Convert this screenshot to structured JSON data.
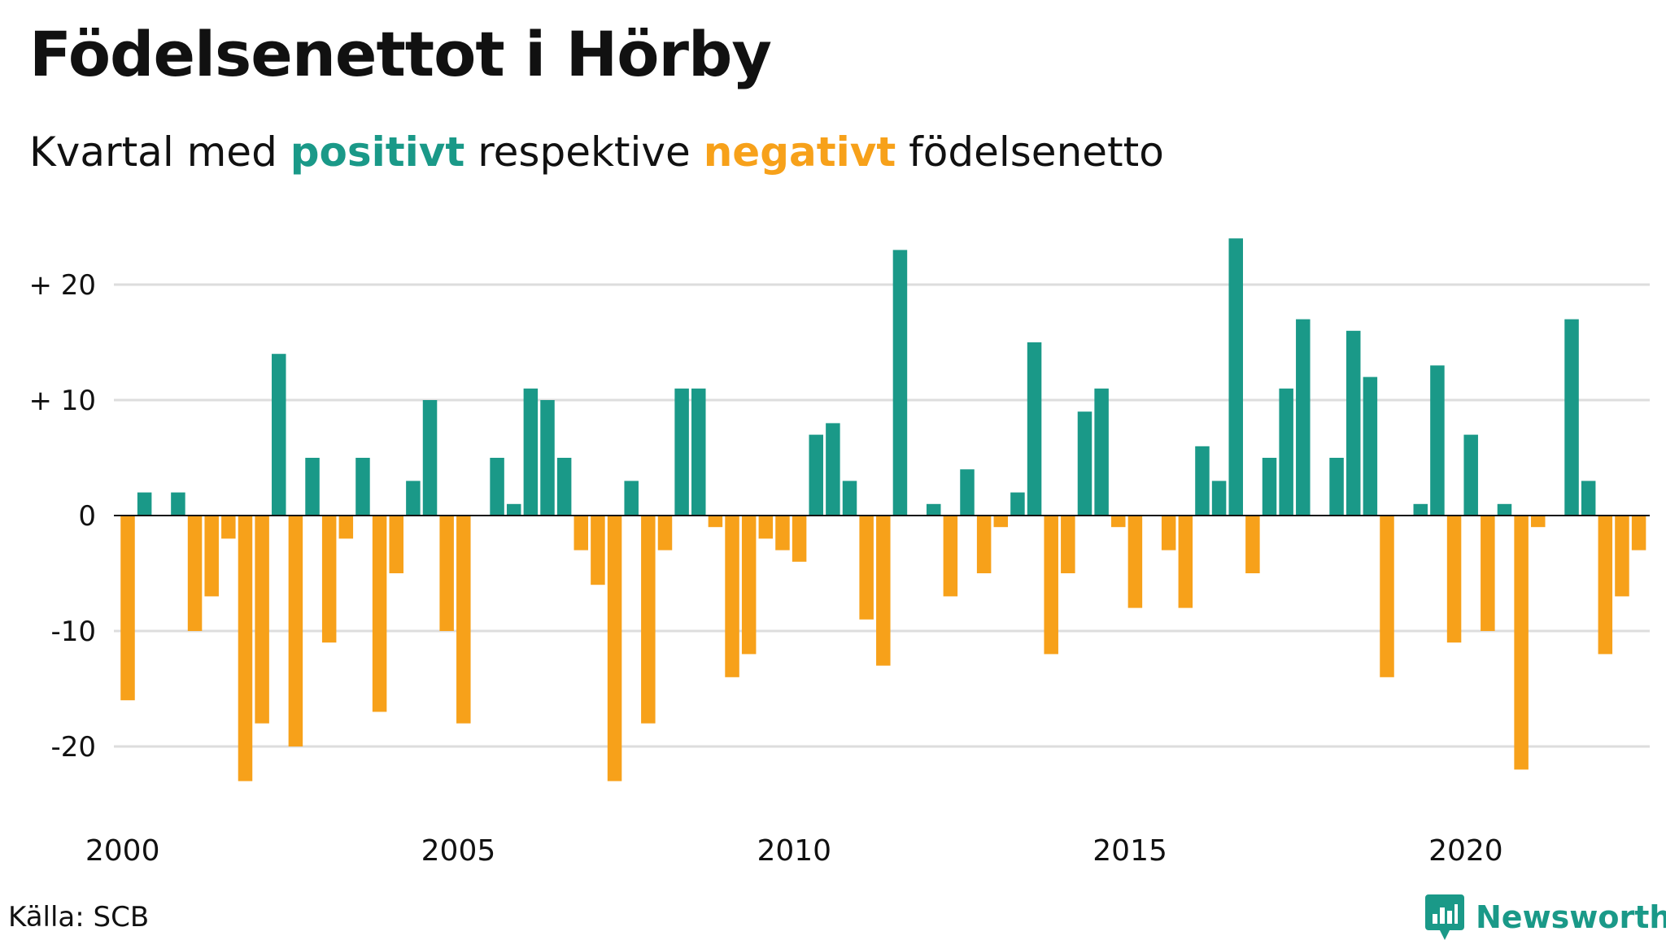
{
  "header": {
    "title": "Födelsenettot i Hörby",
    "subtitle_prefix": "Kvartal med",
    "subtitle_pos": "positivt",
    "subtitle_mid": "respektive",
    "subtitle_neg": "negativt",
    "subtitle_suffix": "födelsenetto"
  },
  "footer": {
    "source": "Källa: SCB",
    "brand": "Newsworthy",
    "brand_icon": "newsworthy-logo-icon"
  },
  "colors": {
    "positive": "#1a9988",
    "negative": "#f7a11a",
    "grid": "#dddddd",
    "zero": "#111111"
  },
  "chart_data": {
    "type": "bar",
    "start_year": 2000,
    "start_quarter": 1,
    "values": [
      -16,
      2,
      0,
      2,
      -10,
      -7,
      -2,
      -23,
      -18,
      14,
      -20,
      5,
      -11,
      -2,
      5,
      -17,
      -5,
      3,
      10,
      -10,
      -18,
      0,
      5,
      1,
      11,
      10,
      5,
      -3,
      -6,
      -23,
      3,
      -18,
      -3,
      11,
      11,
      -1,
      -14,
      -12,
      -2,
      -3,
      -4,
      7,
      8,
      3,
      -9,
      -13,
      23,
      0,
      1,
      -7,
      4,
      -5,
      -1,
      2,
      15,
      -12,
      -5,
      9,
      11,
      -1,
      -8,
      0,
      -3,
      -8,
      6,
      3,
      24,
      -5,
      5,
      11,
      17,
      0,
      5,
      16,
      12,
      -14,
      0,
      1,
      13,
      -11,
      7,
      -10,
      1,
      -22,
      -1,
      0,
      17,
      3,
      -12,
      -7,
      -3
    ],
    "x_ticks": [
      2000,
      2005,
      2010,
      2015,
      2020
    ],
    "x_tick_labels": [
      "2000",
      "2005",
      "2010",
      "2015",
      "2020"
    ],
    "y_ticks": [
      20,
      10,
      0,
      -10,
      -20
    ],
    "y_tick_labels": [
      "+ 20",
      "+ 10",
      "0",
      "-10",
      "-20"
    ],
    "ylim": [
      -25,
      25
    ],
    "grid": true,
    "xlabel": "",
    "ylabel": ""
  }
}
